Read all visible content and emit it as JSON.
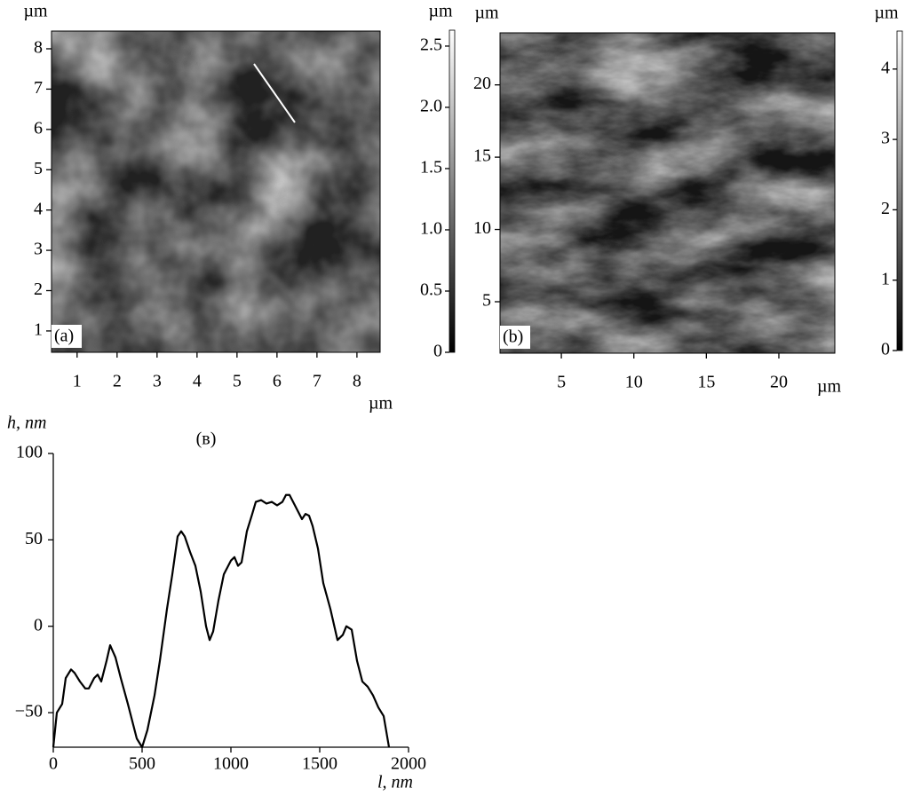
{
  "chart_data": [
    {
      "type": "image",
      "label": "(a)",
      "x_label": "µm",
      "y_label": "µm",
      "xlim": [
        0.36,
        8.58
      ],
      "ylim": [
        0.47,
        8.44
      ],
      "xticks": [
        1,
        2,
        3,
        4,
        5,
        6,
        7,
        8
      ],
      "yticks": [
        1,
        2,
        3,
        4,
        5,
        6,
        7,
        8
      ],
      "colorbar": {
        "label": "µm",
        "lim": [
          0,
          2.63
        ],
        "ticks": [
          0,
          0.5,
          {
            "value": 1,
            "label": "1.0"
          },
          1.5,
          {
            "value": 2,
            "label": "2.0"
          },
          2.5
        ]
      }
    },
    {
      "type": "image",
      "label": "(b)",
      "x_label": "µm",
      "y_label": "µm",
      "xlim": [
        0.77,
        23.86
      ],
      "ylim": [
        1.44,
        23.6
      ],
      "xticks": [
        5,
        10,
        15,
        20
      ],
      "yticks": [
        5,
        10,
        15,
        20
      ],
      "colorbar": {
        "label": "µm",
        "lim": [
          0,
          4.54
        ],
        "ticks": [
          0,
          1,
          2,
          3,
          4
        ]
      }
    },
    {
      "type": "line",
      "title": "(в)",
      "y_label": "h, nm",
      "x_label": "l, nm",
      "xlim": [
        0,
        2000
      ],
      "ylim": [
        -70,
        100
      ],
      "xticks": [
        0,
        500,
        1000,
        1500,
        2000
      ],
      "yticks": [
        {
          "value": -50,
          "label": "−50"
        },
        0,
        50,
        100
      ],
      "series": [
        {
          "color": "#000000",
          "x": [
            0,
            20,
            50,
            70,
            100,
            120,
            150,
            180,
            200,
            230,
            250,
            270,
            300,
            320,
            350,
            380,
            420,
            470,
            500,
            530,
            570,
            600,
            640,
            670,
            700,
            720,
            740,
            770,
            800,
            830,
            860,
            880,
            900,
            930,
            960,
            1000,
            1020,
            1040,
            1060,
            1090,
            1120,
            1140,
            1170,
            1200,
            1230,
            1260,
            1290,
            1310,
            1330,
            1360,
            1400,
            1420,
            1440,
            1460,
            1490,
            1520,
            1560,
            1600,
            1630,
            1650,
            1680,
            1710,
            1740,
            1770,
            1800,
            1830,
            1860,
            1890
          ],
          "values": [
            -70,
            -50,
            -45,
            -30,
            -25,
            -27,
            -32,
            -36,
            -36,
            -30,
            -28,
            -32,
            -20,
            -11,
            -18,
            -30,
            -45,
            -65,
            -70,
            -60,
            -40,
            -20,
            10,
            30,
            52,
            55,
            52,
            43,
            35,
            20,
            0,
            -8,
            -3,
            15,
            30,
            38,
            40,
            35,
            37,
            55,
            65,
            72,
            73,
            71,
            72,
            70,
            72,
            76,
            76,
            70,
            62,
            65,
            64,
            58,
            45,
            25,
            10,
            -8,
            -5,
            0,
            -2,
            -20,
            -32,
            -35,
            -40,
            -47,
            -52,
            -70
          ]
        }
      ]
    }
  ]
}
